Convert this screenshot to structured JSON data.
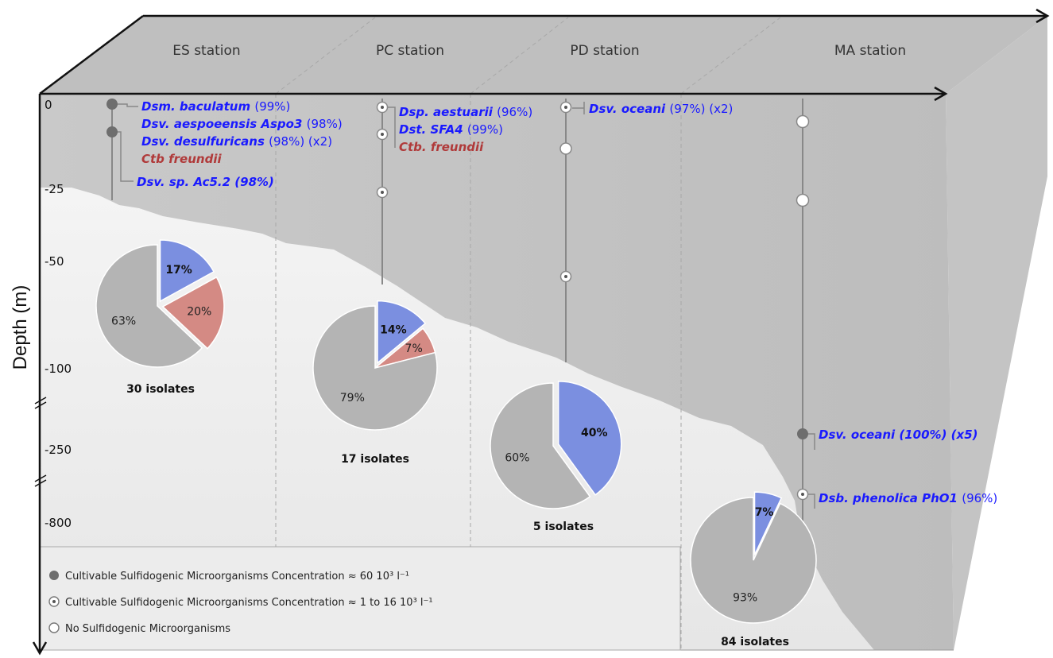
{
  "axis": {
    "ylabel": "Depth (m)",
    "ticks": [
      "0",
      "-25",
      "-50",
      "-100",
      "-250",
      "-800"
    ]
  },
  "stations": [
    {
      "name": "ES station",
      "isolates": "30 isolates",
      "samples": [
        "high",
        "high"
      ],
      "species": [
        {
          "name": "Dsm. baculatum",
          "pct": "(99%)",
          "color": "#1a1aff"
        },
        {
          "name": "Dsv. aespoeensis Aspo3",
          "pct": "(98%)",
          "color": "#1a1aff"
        },
        {
          "name": "Dsv. desulfuricans",
          "pct": "(98%) (x2)",
          "color": "#1a1aff"
        },
        {
          "name": "Ctb freundii",
          "pct": "",
          "color": "#b03a3a"
        },
        {
          "name": "Dsv. sp. Ac5.2 (98%)",
          "pct": "",
          "color": "#1a1aff"
        }
      ],
      "pie": [
        {
          "label": "17%",
          "value": 17,
          "color": "#7b8fe0"
        },
        {
          "label": "20%",
          "value": 20,
          "color": "#d48a84"
        },
        {
          "label": "63%",
          "value": 63,
          "color": "#b4b4b4"
        }
      ]
    },
    {
      "name": "PC station",
      "isolates": "17 isolates",
      "samples": [
        "low",
        "low",
        "low"
      ],
      "species": [
        {
          "name": "Dsp. aestuarii",
          "pct": "(96%)",
          "color": "#1a1aff"
        },
        {
          "name": "Dst. SFA4",
          "pct": "(99%)",
          "color": "#1a1aff"
        },
        {
          "name": "Ctb. freundii",
          "pct": "",
          "color": "#b03a3a"
        }
      ],
      "pie": [
        {
          "label": "14%",
          "value": 14,
          "color": "#7b8fe0"
        },
        {
          "label": "7%",
          "value": 7,
          "color": "#d48a84"
        },
        {
          "label": "79%",
          "value": 79,
          "color": "#b4b4b4"
        }
      ]
    },
    {
      "name": "PD station",
      "isolates": "5 isolates",
      "samples": [
        "low",
        "none",
        "low"
      ],
      "species": [
        {
          "name": "Dsv. oceani",
          "pct": "(97%) (x2)",
          "color": "#1a1aff"
        }
      ],
      "pie": [
        {
          "label": "40%",
          "value": 40,
          "color": "#7b8fe0"
        },
        {
          "label": "60%",
          "value": 60,
          "color": "#b4b4b4"
        }
      ]
    },
    {
      "name": "MA station",
      "isolates": "84 isolates",
      "samples": [
        "none",
        "none",
        "high",
        "low"
      ],
      "species": [
        {
          "name": "Dsv. oceani  (100%) (x5)",
          "pct": "",
          "color": "#1a1aff"
        },
        {
          "name": "Dsb. phenolica PhO1",
          "pct": "(96%)",
          "color": "#1a1aff"
        }
      ],
      "pie": [
        {
          "label": "7%",
          "value": 7,
          "color": "#7b8fe0"
        },
        {
          "label": "93%",
          "value": 93,
          "color": "#b4b4b4"
        }
      ]
    }
  ],
  "legend": {
    "items": [
      {
        "marker": "high",
        "text": "Cultivable Sulfidogenic Microorganisms Concentration ≈ 60 10³ l⁻¹"
      },
      {
        "marker": "low",
        "text": "Cultivable Sulfidogenic Microorganisms Concentration ≈ 1 to 16 10³ l⁻¹"
      },
      {
        "marker": "none",
        "text": "No Sulfidogenic Microorganisms"
      }
    ]
  },
  "colors": {
    "top_face": "#bfbfbf",
    "right_face": "#c4c4c4",
    "water": "#cbcbcb",
    "seabed": "#ececec",
    "high_marker": "#6e6e6e"
  }
}
